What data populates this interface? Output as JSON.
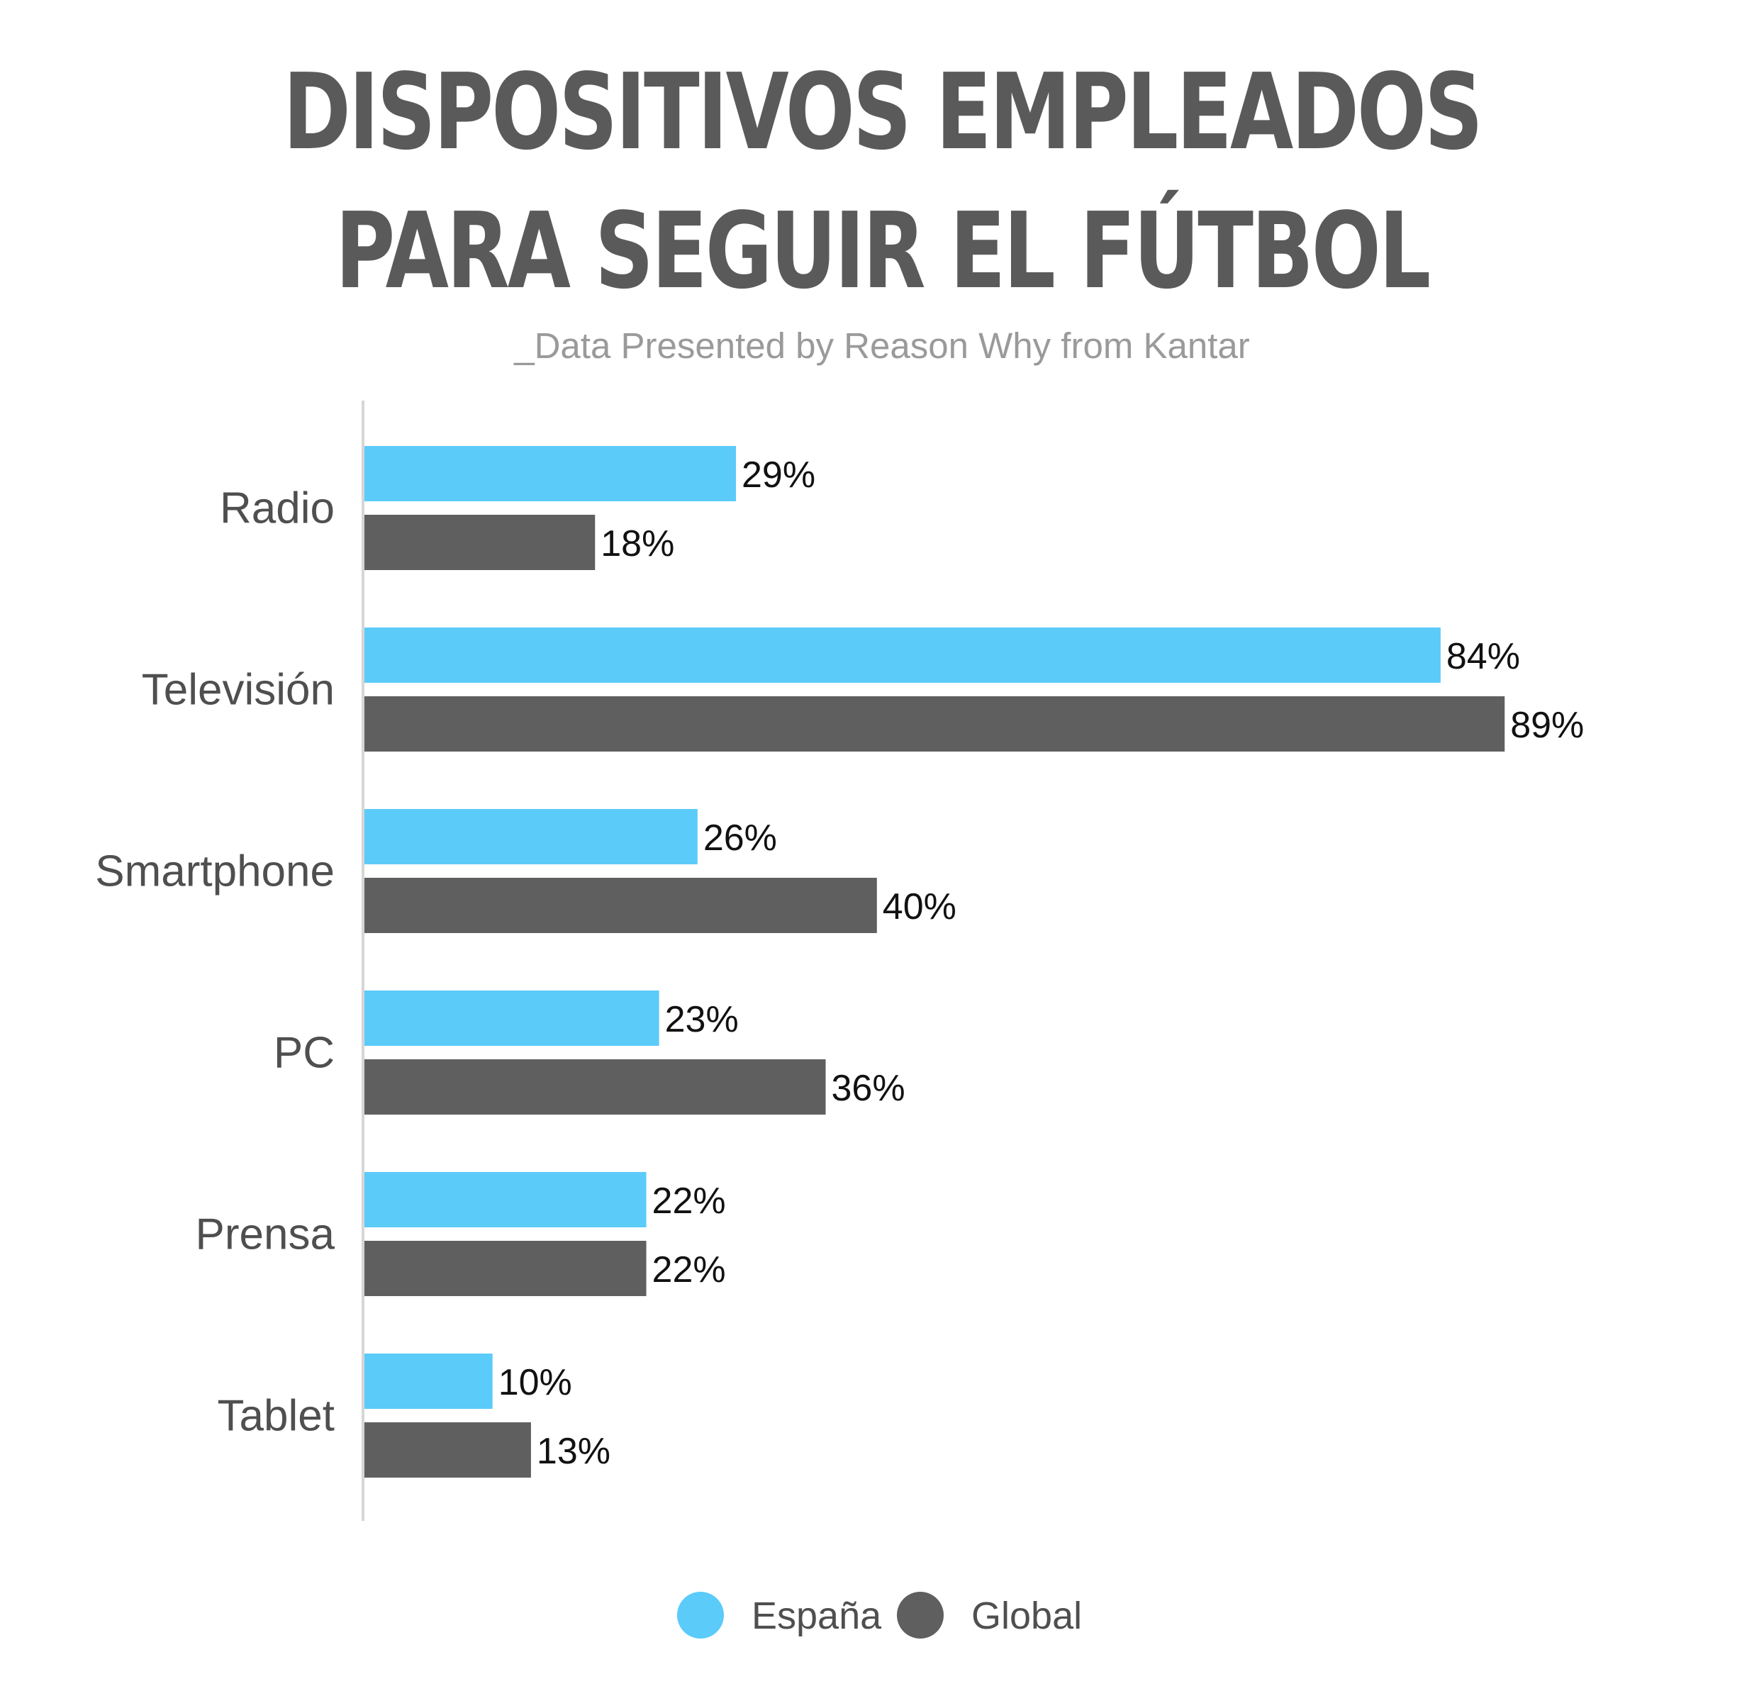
{
  "chart_data": {
    "type": "bar",
    "orientation": "horizontal",
    "title_lines": [
      "DISPOSITIVOS EMPLEADOS",
      "PARA SEGUIR EL FÚTBOL"
    ],
    "subtitle": "_Data Presented by Reason Why from Kantar",
    "categories": [
      "Radio",
      "Televisión",
      "Smartphone",
      "PC",
      "Prensa",
      "Tablet"
    ],
    "series": [
      {
        "name": "España",
        "color": "#5bcbfa",
        "values": [
          29,
          84,
          26,
          23,
          22,
          10
        ]
      },
      {
        "name": "Global",
        "color": "#5f5f5f",
        "values": [
          18,
          89,
          40,
          36,
          22,
          13
        ]
      }
    ],
    "value_suffix": "%",
    "xlim": [
      0,
      100
    ],
    "grid": false,
    "legend_position": "bottom-center"
  }
}
